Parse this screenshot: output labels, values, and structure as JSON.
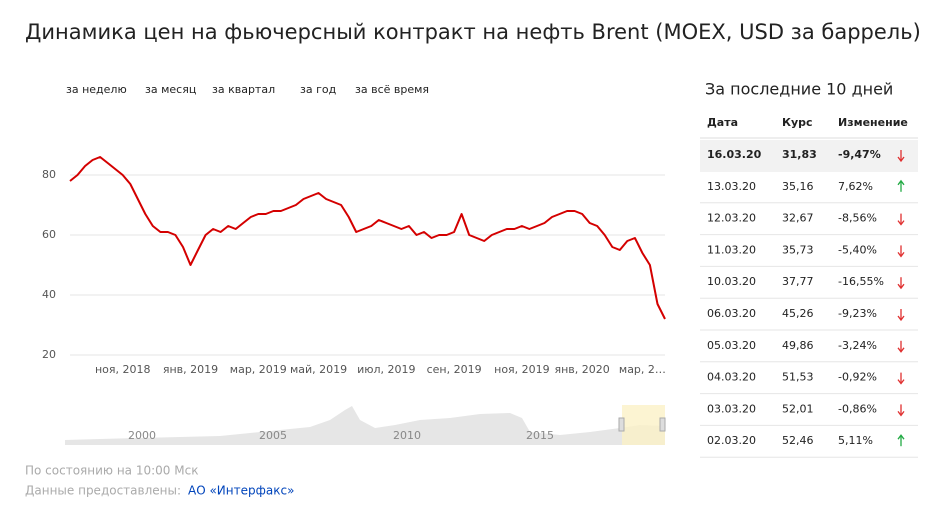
{
  "chart_data": {
    "type": "line",
    "title": "Динамика цен на фьючерсный контракт на нефть Brent (MOEX, USD за баррель)",
    "tabs": [
      "за неделю",
      "за месяц",
      "за квартал",
      "за год",
      "за всё время"
    ],
    "categories": [
      null,
      null,
      null,
      null,
      null,
      null,
      null,
      "ноя, 2018",
      null,
      null,
      null,
      null,
      null,
      null,
      null,
      null,
      "янв, 2019",
      null,
      null,
      null,
      null,
      null,
      null,
      null,
      null,
      "мар, 2019",
      null,
      null,
      null,
      null,
      null,
      null,
      null,
      "май, 2019",
      null,
      null,
      null,
      null,
      null,
      null,
      null,
      null,
      "июл, 2019",
      null,
      null,
      null,
      null,
      null,
      null,
      null,
      null,
      "сен, 2019",
      null,
      null,
      null,
      null,
      null,
      null,
      null,
      null,
      "ноя, 2019",
      null,
      null,
      null,
      null,
      null,
      null,
      null,
      "янв, 2020",
      null,
      null,
      null,
      null,
      null,
      null,
      null,
      "мар, 2…",
      null,
      null,
      null
    ],
    "series": [
      {
        "name": "Brent",
        "color": "#d40000",
        "values": [
          78,
          80,
          83,
          85,
          86,
          84,
          82,
          80,
          77,
          72,
          67,
          63,
          61,
          61,
          60,
          56,
          50,
          55,
          60,
          62,
          61,
          63,
          62,
          64,
          66,
          67,
          67,
          68,
          68,
          69,
          70,
          72,
          73,
          74,
          72,
          71,
          70,
          66,
          61,
          62,
          63,
          65,
          64,
          63,
          62,
          63,
          60,
          61,
          59,
          60,
          60,
          61,
          67,
          60,
          59,
          58,
          60,
          61,
          62,
          62,
          63,
          62,
          63,
          64,
          66,
          67,
          68,
          68,
          67,
          64,
          63,
          60,
          56,
          55,
          58,
          59,
          54,
          50,
          37,
          32
        ]
      }
    ],
    "ylim": [
      16,
      100
    ],
    "yticks": [
      20,
      40,
      60,
      80
    ],
    "grid": true,
    "navigator_years": [
      "2000",
      "2005",
      "2010",
      "2015"
    ]
  },
  "table": {
    "title": "За последние 10 дней",
    "header": [
      "Дата",
      "Курс",
      "Изменение"
    ],
    "rows": [
      [
        "16.03.20",
        "31,83",
        "-9,47%"
      ],
      [
        "13.03.20",
        "35,16",
        "7,62%"
      ],
      [
        "12.03.20",
        "32,67",
        "-8,56%"
      ],
      [
        "11.03.20",
        "35,73",
        "-5,40%"
      ],
      [
        "10.03.20",
        "37,77",
        "-16,55%"
      ],
      [
        "06.03.20",
        "45,26",
        "-9,23%"
      ],
      [
        "05.03.20",
        "49,86",
        "-3,24%"
      ],
      [
        "04.03.20",
        "51,53",
        "-0,92%"
      ],
      [
        "03.03.20",
        "52,01",
        "-0,86%"
      ],
      [
        "02.03.20",
        "52,46",
        "5,11%"
      ]
    ]
  },
  "footer": {
    "status": "По состоянию на 10:00 Мск",
    "source": "Данные предоставлены:",
    "link": "АО «Интерфакс»"
  }
}
